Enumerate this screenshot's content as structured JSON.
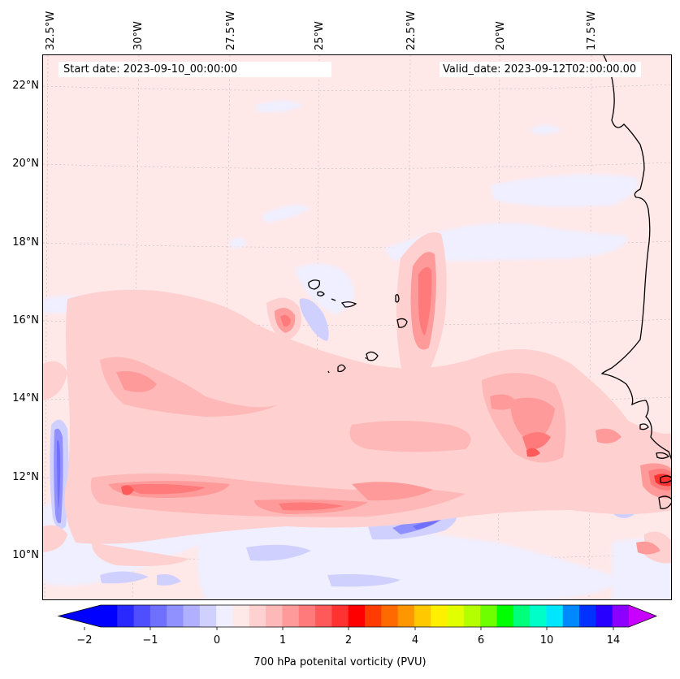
{
  "map": {
    "start_date_label": "Start date: 2023-09-10_00:00:00",
    "valid_date_label": "Valid_date: 2023-09-12T02:00:00.00",
    "lon_labels": [
      "32.5°W",
      "30°W",
      "27.5°W",
      "25°W",
      "22.5°W",
      "20°W",
      "17.5°W"
    ],
    "lat_labels": [
      "22°N",
      "20°N",
      "18°N",
      "16°N",
      "14°N",
      "12°N",
      "10°N"
    ],
    "extent": {
      "lon_min": -32.5,
      "lon_max": -14.9,
      "lat_min": 8.9,
      "lat_max": 22.8
    },
    "gridlines": true
  },
  "colorbar": {
    "title": "700 hPa potenital vorticity (PVU)",
    "tick_labels": [
      "−2",
      "−1",
      "0",
      "1",
      "2",
      "4",
      "6",
      "10",
      "14"
    ],
    "colors": [
      "#0000ff",
      "#2828ff",
      "#4f4fff",
      "#7070ff",
      "#9090ff",
      "#b0b0ff",
      "#d0d0ff",
      "#efefff",
      "#ffe8e8",
      "#ffd0d0",
      "#ffb8b8",
      "#ff9a9a",
      "#ff7a7a",
      "#ff5a5a",
      "#ff3232",
      "#ff0000",
      "#ff3c00",
      "#ff6a00",
      "#ff9600",
      "#ffc800",
      "#fff000",
      "#e2ff00",
      "#b4ff00",
      "#6eff00",
      "#00ff00",
      "#00ff7a",
      "#00ffc8",
      "#00e6ff",
      "#0088ff",
      "#0032ff",
      "#2800ff",
      "#8c00ff"
    ],
    "extend": "both",
    "arrow_low_color": "#0000ff",
    "arrow_high_color": "#c800ff"
  }
}
